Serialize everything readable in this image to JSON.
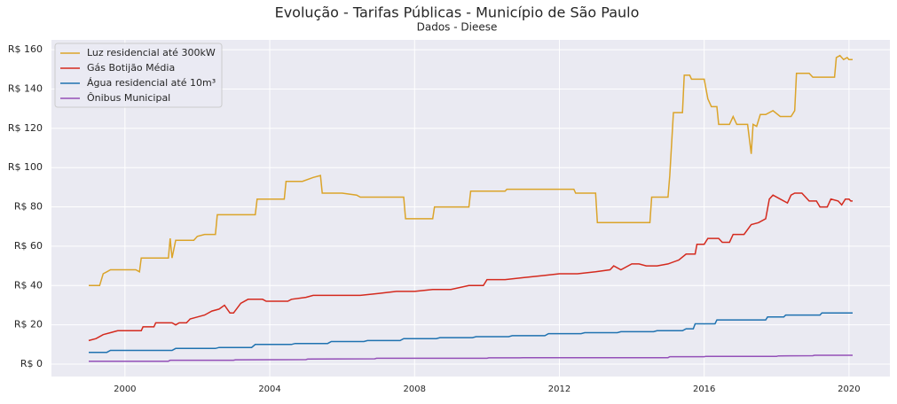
{
  "chart_data": {
    "type": "line",
    "title": "Evolução - Tarifas Públicas - Município de São Paulo",
    "subtitle": "Dados - Dieese",
    "xlim": [
      1997.97,
      2021.13
    ],
    "xticks": [
      2000,
      2004,
      2008,
      2012,
      2016,
      2020
    ],
    "ylim": [
      -6.3,
      165
    ],
    "yticks": [
      {
        "value": 0,
        "label": "R$ 0"
      },
      {
        "value": 20,
        "label": "R$ 20"
      },
      {
        "value": 40,
        "label": "R$ 40"
      },
      {
        "value": 60,
        "label": "R$ 60"
      },
      {
        "value": 80,
        "label": "R$ 80"
      },
      {
        "value": 100,
        "label": "R$ 100"
      },
      {
        "value": 120,
        "label": "R$ 120"
      },
      {
        "value": 140,
        "label": "R$ 140"
      },
      {
        "value": 160,
        "label": "R$ 160"
      }
    ],
    "grid": true,
    "legend": "upper left",
    "series": [
      {
        "name": "Luz residencial até 300kW",
        "color": "#dba42a",
        "x": [
          1999.0,
          1999.3,
          1999.4,
          1999.5,
          1999.6,
          2000.3,
          2000.4,
          2000.45,
          2001.2,
          2001.25,
          2001.3,
          2001.4,
          2001.9,
          2002.0,
          2002.2,
          2002.5,
          2002.55,
          2003.6,
          2003.65,
          2003.8,
          2004.4,
          2004.45,
          2004.9,
          2005.2,
          2005.4,
          2005.45,
          2006.0,
          2006.4,
          2006.5,
          2007.7,
          2007.75,
          2008.5,
          2008.55,
          2009.5,
          2009.55,
          2010.5,
          2010.55,
          2012.4,
          2012.45,
          2013.0,
          2013.05,
          2014.5,
          2014.55,
          2015.0,
          2015.05,
          2015.15,
          2015.4,
          2015.45,
          2015.6,
          2015.65,
          2016.0,
          2016.1,
          2016.2,
          2016.35,
          2016.4,
          2016.7,
          2016.8,
          2016.9,
          2017.2,
          2017.3,
          2017.35,
          2017.45,
          2017.55,
          2017.7,
          2017.9,
          2018.1,
          2018.4,
          2018.5,
          2018.55,
          2018.9,
          2019.0,
          2019.55,
          2019.6,
          2019.65,
          2019.75,
          2019.85,
          2019.95,
          2020.0,
          2020.1
        ],
        "values": [
          40,
          40,
          46,
          47,
          48,
          48,
          47,
          54,
          54,
          64,
          54,
          63,
          63,
          65,
          66,
          66,
          76,
          76,
          84,
          84,
          84,
          93,
          93,
          95,
          96,
          87,
          87,
          86,
          85,
          85,
          74,
          74,
          80,
          80,
          88,
          88,
          89,
          89,
          87,
          87,
          72,
          72,
          85,
          85,
          96,
          128,
          128,
          147,
          147,
          145,
          145,
          135,
          131,
          131,
          122,
          122,
          126,
          122,
          122,
          107,
          122,
          121,
          127,
          127,
          129,
          126,
          126,
          129,
          148,
          148,
          146,
          146,
          146,
          156,
          157,
          155,
          156,
          155,
          155
        ]
      },
      {
        "name": "Gás Botijão Média",
        "color": "#d42a1e",
        "x": [
          1999.0,
          1999.2,
          1999.4,
          1999.6,
          1999.8,
          2000.45,
          2000.5,
          2000.8,
          2000.85,
          2001.3,
          2001.4,
          2001.5,
          2001.7,
          2001.8,
          2002.0,
          2002.2,
          2002.4,
          2002.6,
          2002.75,
          2002.9,
          2003.0,
          2003.2,
          2003.4,
          2003.8,
          2003.9,
          2004.5,
          2004.6,
          2005.0,
          2005.2,
          2006.0,
          2006.5,
          2007.0,
          2007.5,
          2008.0,
          2008.5,
          2009.0,
          2009.5,
          2009.9,
          2010.0,
          2010.5,
          2011.0,
          2011.5,
          2012.0,
          2012.5,
          2013.0,
          2013.4,
          2013.5,
          2013.7,
          2014.0,
          2014.2,
          2014.4,
          2014.7,
          2015.0,
          2015.3,
          2015.5,
          2015.75,
          2015.8,
          2016.0,
          2016.1,
          2016.4,
          2016.5,
          2016.7,
          2016.8,
          2017.1,
          2017.3,
          2017.5,
          2017.7,
          2017.8,
          2017.9,
          2018.1,
          2018.3,
          2018.4,
          2018.5,
          2018.7,
          2018.9,
          2019.1,
          2019.2,
          2019.4,
          2019.5,
          2019.7,
          2019.8,
          2019.9,
          2020.0,
          2020.05,
          2020.1
        ],
        "values": [
          12,
          13,
          15,
          16,
          17,
          17,
          19,
          19,
          21,
          21,
          20,
          21,
          21,
          23,
          24,
          25,
          27,
          28,
          30,
          26,
          26,
          31,
          33,
          33,
          32,
          32,
          33,
          34,
          35,
          35,
          35,
          36,
          37,
          37,
          38,
          38,
          40,
          40,
          43,
          43,
          44,
          45,
          46,
          46,
          47,
          48,
          50,
          48,
          51,
          51,
          50,
          50,
          51,
          53,
          56,
          56,
          61,
          61,
          64,
          64,
          62,
          62,
          66,
          66,
          71,
          72,
          74,
          84,
          86,
          84,
          82,
          86,
          87,
          87,
          83,
          83,
          80,
          80,
          84,
          83,
          81,
          84,
          84,
          83,
          83
        ]
      },
      {
        "name": "Água residencial até 10m³",
        "color": "#1f72b0",
        "x": [
          1999.0,
          1999.5,
          1999.6,
          2001.3,
          2001.4,
          2002.5,
          2002.6,
          2003.5,
          2003.6,
          2004.6,
          2004.7,
          2005.6,
          2005.7,
          2006.6,
          2006.7,
          2007.6,
          2007.7,
          2008.6,
          2008.7,
          2009.6,
          2009.7,
          2010.6,
          2010.7,
          2011.6,
          2011.7,
          2012.6,
          2012.7,
          2013.6,
          2013.7,
          2014.6,
          2014.7,
          2015.4,
          2015.5,
          2015.7,
          2015.75,
          2016.3,
          2016.35,
          2017.7,
          2017.75,
          2018.2,
          2018.25,
          2019.2,
          2019.25,
          2020.1
        ],
        "values": [
          6,
          6,
          7,
          7,
          8,
          8,
          8.5,
          8.5,
          10,
          10,
          10.5,
          10.5,
          11.5,
          11.5,
          12,
          12,
          13,
          13,
          13.5,
          13.5,
          14,
          14,
          14.5,
          14.5,
          15.5,
          15.5,
          16,
          16,
          16.5,
          16.5,
          17,
          17,
          18,
          18,
          20.5,
          20.5,
          22.5,
          22.5,
          24,
          24,
          25,
          25,
          26,
          26
        ]
      },
      {
        "name": "Ônibus Municipal",
        "color": "#9450b8",
        "x": [
          1999.0,
          2001.2,
          2001.25,
          2003.0,
          2003.05,
          2005.0,
          2005.05,
          2006.9,
          2006.95,
          2010.0,
          2010.05,
          2010.9,
          2011.0,
          2015.0,
          2015.05,
          2016.0,
          2016.05,
          2018.0,
          2018.05,
          2019.0,
          2019.05,
          2020.1
        ],
        "values": [
          1.5,
          1.5,
          2,
          2,
          2.2,
          2.3,
          2.6,
          2.7,
          3,
          3,
          3.2,
          3.2,
          3.3,
          3.3,
          3.8,
          3.8,
          4,
          4,
          4.2,
          4.3,
          4.5,
          4.5
        ]
      }
    ]
  }
}
